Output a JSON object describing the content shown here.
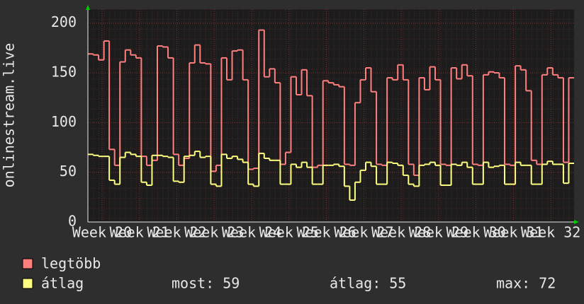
{
  "chart_data": {
    "type": "step-line",
    "y_label": "onlinestream.live",
    "x": [
      0,
      1,
      2,
      3,
      4,
      5,
      6,
      7,
      8,
      9,
      10,
      11,
      12,
      13,
      14,
      15,
      16,
      17,
      18,
      19,
      20,
      21,
      22,
      23,
      24,
      25,
      26,
      27,
      28,
      29,
      30,
      31,
      32,
      33,
      34,
      35,
      36,
      37,
      38,
      39,
      40,
      41,
      42,
      43,
      44,
      45,
      46,
      47,
      48,
      49,
      50,
      51,
      52,
      53,
      54,
      55,
      56,
      57,
      58,
      59,
      60,
      61,
      62,
      63,
      64,
      65,
      66,
      67,
      68,
      69,
      70,
      71,
      72,
      73,
      74,
      75,
      76,
      77,
      78,
      79,
      80,
      81,
      82,
      83,
      84,
      85,
      86,
      87,
      88,
      89,
      90
    ],
    "xlim": [
      0,
      91
    ],
    "xticks": [
      {
        "value": 2.65,
        "label": "Week 20"
      },
      {
        "value": 9.65,
        "label": "Week 21"
      },
      {
        "value": 16.65,
        "label": "Week 22"
      },
      {
        "value": 23.65,
        "label": "Week 23"
      },
      {
        "value": 30.65,
        "label": "Week 24"
      },
      {
        "value": 37.65,
        "label": "Week 25"
      },
      {
        "value": 44.65,
        "label": "Week 26"
      },
      {
        "value": 51.65,
        "label": "Week 27"
      },
      {
        "value": 58.65,
        "label": "Week 28"
      },
      {
        "value": 65.65,
        "label": "Week 29"
      },
      {
        "value": 72.65,
        "label": "Week 30"
      },
      {
        "value": 79.65,
        "label": "Week 31"
      },
      {
        "value": 86.65,
        "label": "Week 32"
      }
    ],
    "ylim": [
      0,
      214
    ],
    "yticks": [
      0,
      50,
      100,
      150,
      200
    ],
    "grid": true,
    "series": [
      {
        "name": "legtöbb",
        "color": "#ff7f7f",
        "values": [
          169,
          168,
          163,
          182,
          73,
          57,
          161,
          173,
          168,
          165,
          66,
          57,
          62,
          177,
          176,
          165,
          68,
          57,
          64,
          160,
          178,
          160,
          159,
          51,
          57,
          165,
          143,
          172,
          173,
          143,
          53,
          54,
          193,
          146,
          154,
          140,
          58,
          70,
          146,
          128,
          153,
          127,
          55,
          57,
          142,
          140,
          138,
          136,
          58,
          57,
          120,
          143,
          155,
          131,
          58,
          57,
          145,
          143,
          158,
          143,
          58,
          47,
          145,
          133,
          156,
          143,
          58,
          57,
          155,
          144,
          158,
          147,
          58,
          57,
          148,
          151,
          150,
          145,
          58,
          57,
          157,
          153,
          132,
          62,
          58,
          148,
          155,
          148,
          145,
          60,
          145
        ]
      },
      {
        "name": "átlag",
        "color": "#ffff80",
        "values": [
          68,
          67,
          66,
          66,
          42,
          38,
          65,
          70,
          68,
          66,
          40,
          37,
          67,
          67,
          66,
          65,
          41,
          40,
          66,
          67,
          71,
          65,
          66,
          38,
          36,
          68,
          64,
          66,
          63,
          60,
          38,
          36,
          69,
          64,
          62,
          62,
          38,
          38,
          58,
          55,
          60,
          55,
          38,
          38,
          57,
          57,
          58,
          56,
          36,
          22,
          40,
          52,
          60,
          56,
          38,
          38,
          60,
          59,
          57,
          47,
          38,
          36,
          57,
          58,
          60,
          57,
          37,
          37,
          58,
          57,
          60,
          55,
          38,
          38,
          60,
          55,
          56,
          57,
          38,
          38,
          60,
          57,
          57,
          38,
          38,
          58,
          61,
          58,
          58,
          39,
          59
        ],
        "stats": [
          {
            "label": "most:",
            "value": 59
          },
          {
            "label": "átlag:",
            "value": 55
          },
          {
            "label": "max:",
            "value": 72
          }
        ]
      }
    ]
  }
}
